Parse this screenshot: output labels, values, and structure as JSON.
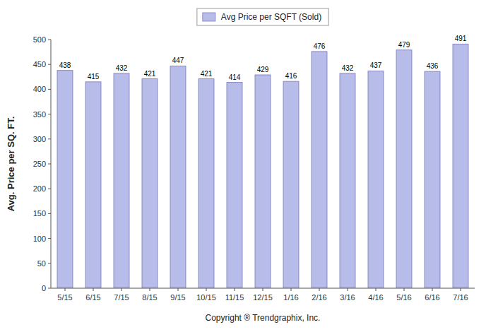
{
  "chart_data": {
    "type": "bar",
    "categories": [
      "5/15",
      "6/15",
      "7/15",
      "8/15",
      "9/15",
      "10/15",
      "11/15",
      "12/15",
      "1/16",
      "2/16",
      "3/16",
      "4/16",
      "5/16",
      "6/16",
      "7/16"
    ],
    "series": [
      {
        "name": "Avg Price per SQFT (Sold)",
        "color": "#b8bce8",
        "values": [
          438,
          415,
          432,
          421,
          447,
          421,
          414,
          429,
          416,
          476,
          432,
          437,
          479,
          436,
          491
        ]
      }
    ],
    "ylabel": "Avg. Price per SQ. FT.",
    "xlabel": "Copyright ® Trendgraphix, Inc.",
    "ylim": [
      0,
      500
    ],
    "yticks": [
      0,
      50,
      100,
      150,
      200,
      250,
      300,
      350,
      400,
      450,
      500
    ],
    "grid": false,
    "legend": "top",
    "data_labels": true
  }
}
